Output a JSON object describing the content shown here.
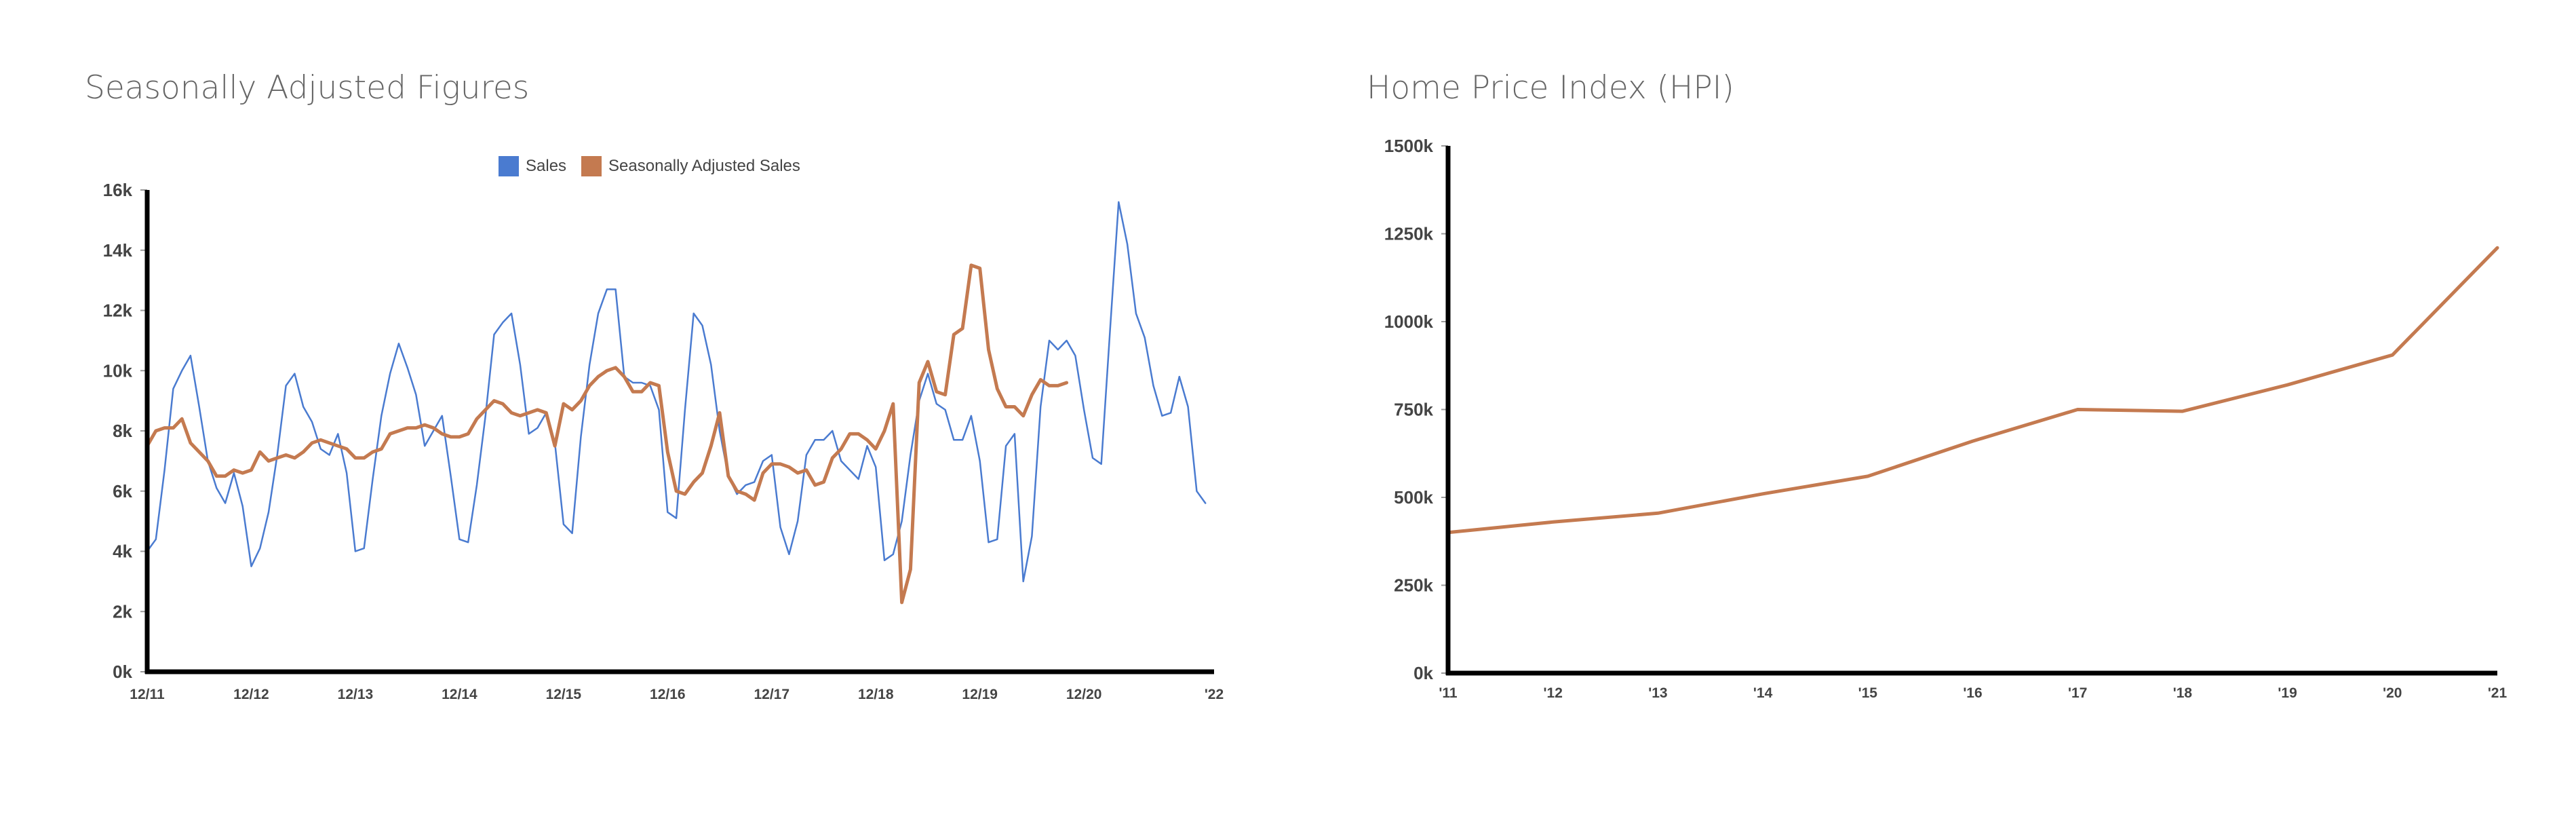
{
  "chart_data": [
    {
      "type": "line",
      "title": "Seasonally Adjusted Figures",
      "ylim": [
        0,
        16000
      ],
      "y_ticks": [
        "0k",
        "2k",
        "4k",
        "6k",
        "8k",
        "10k",
        "12k",
        "14k",
        "16k"
      ],
      "x_ticks": [
        "12/11",
        "12/12",
        "12/13",
        "12/14",
        "12/15",
        "12/16",
        "12/17",
        "12/18",
        "12/19",
        "12/20",
        "'22"
      ],
      "legend_position": "top-center",
      "grid": false,
      "series": [
        {
          "name": "Sales",
          "color": "#4a7bd0",
          "points": [
            [
              0,
              4000
            ],
            [
              1,
              4400
            ],
            [
              2,
              6700
            ],
            [
              3,
              9400
            ],
            [
              4,
              10000
            ],
            [
              5,
              10500
            ],
            [
              6,
              8800
            ],
            [
              7,
              7000
            ],
            [
              8,
              6100
            ],
            [
              9,
              5600
            ],
            [
              10,
              6600
            ],
            [
              11,
              5500
            ],
            [
              12,
              3500
            ],
            [
              13,
              4100
            ],
            [
              14,
              5300
            ],
            [
              15,
              7200
            ],
            [
              16,
              9500
            ],
            [
              17,
              9900
            ],
            [
              18,
              8800
            ],
            [
              19,
              8300
            ],
            [
              20,
              7400
            ],
            [
              21,
              7200
            ],
            [
              22,
              7900
            ],
            [
              23,
              6600
            ],
            [
              24,
              4000
            ],
            [
              25,
              4100
            ],
            [
              26,
              6400
            ],
            [
              27,
              8500
            ],
            [
              28,
              9900
            ],
            [
              29,
              10900
            ],
            [
              30,
              10100
            ],
            [
              31,
              9200
            ],
            [
              32,
              7500
            ],
            [
              33,
              8000
            ],
            [
              34,
              8500
            ],
            [
              35,
              6500
            ],
            [
              36,
              4400
            ],
            [
              37,
              4300
            ],
            [
              38,
              6200
            ],
            [
              39,
              8500
            ],
            [
              40,
              11200
            ],
            [
              41,
              11600
            ],
            [
              42,
              11900
            ],
            [
              43,
              10200
            ],
            [
              44,
              7900
            ],
            [
              45,
              8100
            ],
            [
              46,
              8600
            ],
            [
              47,
              7600
            ],
            [
              48,
              4900
            ],
            [
              49,
              4600
            ],
            [
              50,
              7800
            ],
            [
              51,
              10200
            ],
            [
              52,
              11900
            ],
            [
              53,
              12700
            ],
            [
              54,
              12700
            ],
            [
              55,
              9800
            ],
            [
              56,
              9600
            ],
            [
              57,
              9600
            ],
            [
              58,
              9500
            ],
            [
              59,
              8700
            ],
            [
              60,
              5300
            ],
            [
              61,
              5100
            ],
            [
              62,
              8700
            ],
            [
              63,
              11900
            ],
            [
              64,
              11500
            ],
            [
              65,
              10200
            ],
            [
              66,
              8000
            ],
            [
              67,
              6500
            ],
            [
              68,
              5900
            ],
            [
              69,
              6200
            ],
            [
              70,
              6300
            ],
            [
              71,
              7000
            ],
            [
              72,
              7200
            ],
            [
              73,
              4800
            ],
            [
              74,
              3900
            ],
            [
              75,
              5000
            ],
            [
              76,
              7200
            ],
            [
              77,
              7700
            ],
            [
              78,
              7700
            ],
            [
              79,
              8000
            ],
            [
              80,
              7000
            ],
            [
              81,
              6700
            ],
            [
              82,
              6400
            ],
            [
              83,
              7500
            ],
            [
              84,
              6800
            ],
            [
              85,
              3700
            ],
            [
              86,
              3900
            ],
            [
              87,
              5000
            ],
            [
              88,
              7200
            ],
            [
              89,
              9000
            ],
            [
              90,
              9900
            ],
            [
              91,
              8900
            ],
            [
              92,
              8700
            ],
            [
              93,
              7700
            ],
            [
              94,
              7700
            ],
            [
              95,
              8500
            ],
            [
              96,
              7000
            ],
            [
              97,
              4300
            ],
            [
              98,
              4400
            ],
            [
              99,
              7500
            ],
            [
              100,
              7900
            ],
            [
              101,
              3000
            ],
            [
              102,
              4500
            ],
            [
              103,
              8800
            ],
            [
              104,
              11000
            ],
            [
              105,
              10700
            ],
            [
              106,
              11000
            ],
            [
              107,
              10500
            ],
            [
              108,
              8700
            ],
            [
              109,
              7100
            ],
            [
              110,
              6900
            ],
            [
              111,
              11300
            ],
            [
              112,
              15600
            ],
            [
              113,
              14200
            ],
            [
              114,
              11900
            ],
            [
              115,
              11100
            ],
            [
              116,
              9500
            ],
            [
              117,
              8500
            ],
            [
              118,
              8600
            ],
            [
              119,
              9800
            ],
            [
              120,
              8800
            ],
            [
              121,
              6000
            ],
            [
              122,
              5600
            ]
          ]
        },
        {
          "name": "Seasonally Adjusted Sales",
          "color": "#c47a50",
          "points": [
            [
              0,
              7500
            ],
            [
              1,
              8000
            ],
            [
              2,
              8100
            ],
            [
              3,
              8100
            ],
            [
              4,
              8400
            ],
            [
              5,
              7600
            ],
            [
              6,
              7300
            ],
            [
              7,
              7000
            ],
            [
              8,
              6500
            ],
            [
              9,
              6500
            ],
            [
              10,
              6700
            ],
            [
              11,
              6600
            ],
            [
              12,
              6700
            ],
            [
              13,
              7300
            ],
            [
              14,
              7000
            ],
            [
              15,
              7100
            ],
            [
              16,
              7200
            ],
            [
              17,
              7100
            ],
            [
              18,
              7300
            ],
            [
              19,
              7600
            ],
            [
              20,
              7700
            ],
            [
              21,
              7600
            ],
            [
              22,
              7500
            ],
            [
              23,
              7400
            ],
            [
              24,
              7100
            ],
            [
              25,
              7100
            ],
            [
              26,
              7300
            ],
            [
              27,
              7400
            ],
            [
              28,
              7900
            ],
            [
              29,
              8000
            ],
            [
              30,
              8100
            ],
            [
              31,
              8100
            ],
            [
              32,
              8200
            ],
            [
              33,
              8100
            ],
            [
              34,
              7900
            ],
            [
              35,
              7800
            ],
            [
              36,
              7800
            ],
            [
              37,
              7900
            ],
            [
              38,
              8400
            ],
            [
              39,
              8700
            ],
            [
              40,
              9000
            ],
            [
              41,
              8900
            ],
            [
              42,
              8600
            ],
            [
              43,
              8500
            ],
            [
              44,
              8600
            ],
            [
              45,
              8700
            ],
            [
              46,
              8600
            ],
            [
              47,
              7500
            ],
            [
              48,
              8900
            ],
            [
              49,
              8700
            ],
            [
              50,
              9000
            ],
            [
              51,
              9500
            ],
            [
              52,
              9800
            ],
            [
              53,
              10000
            ],
            [
              54,
              10100
            ],
            [
              55,
              9800
            ],
            [
              56,
              9300
            ],
            [
              57,
              9300
            ],
            [
              58,
              9600
            ],
            [
              59,
              9500
            ],
            [
              60,
              7300
            ],
            [
              61,
              6000
            ],
            [
              62,
              5900
            ],
            [
              63,
              6300
            ],
            [
              64,
              6600
            ],
            [
              65,
              7500
            ],
            [
              66,
              8600
            ],
            [
              67,
              6500
            ],
            [
              68,
              6000
            ],
            [
              69,
              5900
            ],
            [
              70,
              5700
            ],
            [
              71,
              6600
            ],
            [
              72,
              6900
            ],
            [
              73,
              6900
            ],
            [
              74,
              6800
            ],
            [
              75,
              6600
            ],
            [
              76,
              6700
            ],
            [
              77,
              6200
            ],
            [
              78,
              6300
            ],
            [
              79,
              7100
            ],
            [
              80,
              7400
            ],
            [
              81,
              7900
            ],
            [
              82,
              7900
            ],
            [
              83,
              7700
            ],
            [
              84,
              7400
            ],
            [
              85,
              8000
            ],
            [
              86,
              8900
            ],
            [
              87,
              2300
            ],
            [
              88,
              3400
            ],
            [
              89,
              9600
            ],
            [
              90,
              10300
            ],
            [
              91,
              9300
            ],
            [
              92,
              9200
            ],
            [
              93,
              11200
            ],
            [
              94,
              11400
            ],
            [
              95,
              13500
            ],
            [
              96,
              13400
            ],
            [
              97,
              10700
            ],
            [
              98,
              9400
            ],
            [
              99,
              8800
            ],
            [
              100,
              8800
            ],
            [
              101,
              8500
            ],
            [
              102,
              9200
            ],
            [
              103,
              9700
            ],
            [
              104,
              9500
            ],
            [
              105,
              9500
            ],
            [
              106,
              9600
            ]
          ]
        }
      ]
    },
    {
      "type": "line",
      "title": "Home Price Index (HPI)",
      "ylim": [
        0,
        1500000
      ],
      "y_ticks": [
        "0k",
        "250k",
        "500k",
        "750k",
        "1000k",
        "1250k",
        "1500k"
      ],
      "x_ticks": [
        "'11",
        "'12",
        "'13",
        "'14",
        "'15",
        "'16",
        "'17",
        "'18",
        "'19",
        "'20",
        "'21"
      ],
      "legend_position": "none",
      "grid": false,
      "series": [
        {
          "color": "#c47a50",
          "x": [
            2011,
            2012,
            2013,
            2014,
            2015,
            2016,
            2017,
            2018,
            2019,
            2020,
            2021
          ],
          "values": [
            400000,
            430000,
            455000,
            510000,
            560000,
            660000,
            750000,
            745000,
            820000,
            905000,
            1210000
          ]
        }
      ]
    }
  ]
}
